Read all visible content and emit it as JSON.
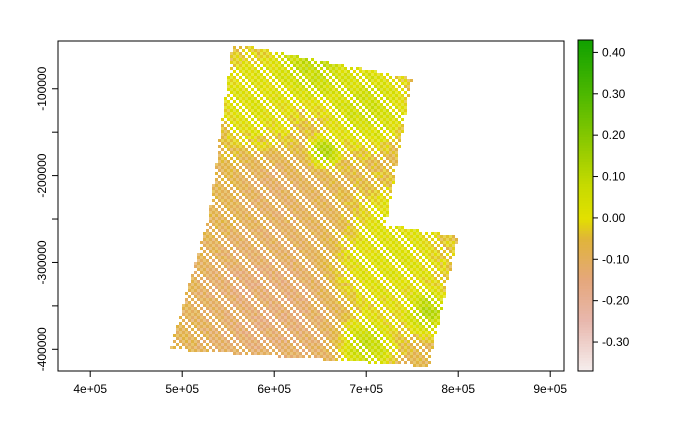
{
  "chart_data": {
    "type": "heatmap",
    "title": "",
    "xlabel": "",
    "ylabel": "",
    "xlim": [
      365000,
      915000
    ],
    "ylim": [
      -425000,
      -45000
    ],
    "x_ticks": [
      {
        "value": 400000,
        "label": "4e+05"
      },
      {
        "value": 500000,
        "label": "5e+05"
      },
      {
        "value": 600000,
        "label": "6e+05"
      },
      {
        "value": 700000,
        "label": "7e+05"
      },
      {
        "value": 800000,
        "label": "8e+05"
      },
      {
        "value": 900000,
        "label": "9e+05"
      }
    ],
    "y_ticks": [
      {
        "value": -100000,
        "label": "-100000",
        "labeled": true
      },
      {
        "value": -150000,
        "label": "",
        "labeled": false
      },
      {
        "value": -200000,
        "label": "-200000",
        "labeled": true
      },
      {
        "value": -250000,
        "label": "",
        "labeled": false
      },
      {
        "value": -300000,
        "label": "-300000",
        "labeled": true
      },
      {
        "value": -350000,
        "label": "",
        "labeled": false
      },
      {
        "value": -400000,
        "label": "-400000",
        "labeled": true
      }
    ],
    "raster": {
      "footprint_upper": [
        [
          555000,
          -48000
        ],
        [
          750000,
          -88000
        ],
        [
          718000,
          -280000
        ],
        [
          530000,
          -240000
        ]
      ],
      "footprint_lower": [
        [
          535000,
          -225000
        ],
        [
          800000,
          -270000
        ],
        [
          768000,
          -420000
        ],
        [
          487000,
          -400000
        ]
      ],
      "value_range": [
        -0.37,
        0.43
      ],
      "dominant_value": -0.07,
      "regions": [
        {
          "center": [
            640000,
            -70000
          ],
          "radius": 35000,
          "value": 0.14
        },
        {
          "center": [
            700000,
            -120000
          ],
          "radius": 40000,
          "value": 0.1
        },
        {
          "center": [
            580000,
            -110000
          ],
          "radius": 45000,
          "value": 0.05
        },
        {
          "center": [
            655000,
            -172000
          ],
          "radius": 14000,
          "value": 0.18
        },
        {
          "center": [
            720000,
            -300000
          ],
          "radius": 60000,
          "value": 0.05
        },
        {
          "center": [
            740000,
            -250000
          ],
          "radius": 35000,
          "value": 0.03
        },
        {
          "center": [
            595000,
            -350000
          ],
          "radius": 70000,
          "value": -0.15
        },
        {
          "center": [
            640000,
            -260000
          ],
          "radius": 40000,
          "value": -0.1
        },
        {
          "center": [
            600000,
            -220000
          ],
          "radius": 30000,
          "value": -0.12
        },
        {
          "center": [
            700000,
            -395000
          ],
          "radius": 25000,
          "value": 0.15
        },
        {
          "center": [
            765000,
            -360000
          ],
          "radius": 18000,
          "value": 0.16
        },
        {
          "center": [
            770000,
            -350000
          ],
          "radius": 15000,
          "value": 0.12
        }
      ]
    },
    "legend": {
      "position": "right",
      "ticks": [
        0.4,
        0.3,
        0.2,
        0.1,
        0.0,
        -0.1,
        -0.2,
        -0.3
      ],
      "tick_labels": [
        "0.40",
        "0.30",
        "0.20",
        "0.10",
        "0.00",
        "-0.10",
        "-0.20",
        "-0.30"
      ],
      "range": [
        -0.37,
        0.43
      ],
      "color_stops": [
        {
          "value": -0.37,
          "color": "#f6eeee"
        },
        {
          "value": -0.25,
          "color": "#e8b8ae"
        },
        {
          "value": -0.15,
          "color": "#e5a77c"
        },
        {
          "value": -0.05,
          "color": "#e0b43a"
        },
        {
          "value": 0.0,
          "color": "#e2e000"
        },
        {
          "value": 0.08,
          "color": "#c6da00"
        },
        {
          "value": 0.18,
          "color": "#8fca00"
        },
        {
          "value": 0.3,
          "color": "#4db800"
        },
        {
          "value": 0.43,
          "color": "#11a100"
        }
      ]
    }
  }
}
